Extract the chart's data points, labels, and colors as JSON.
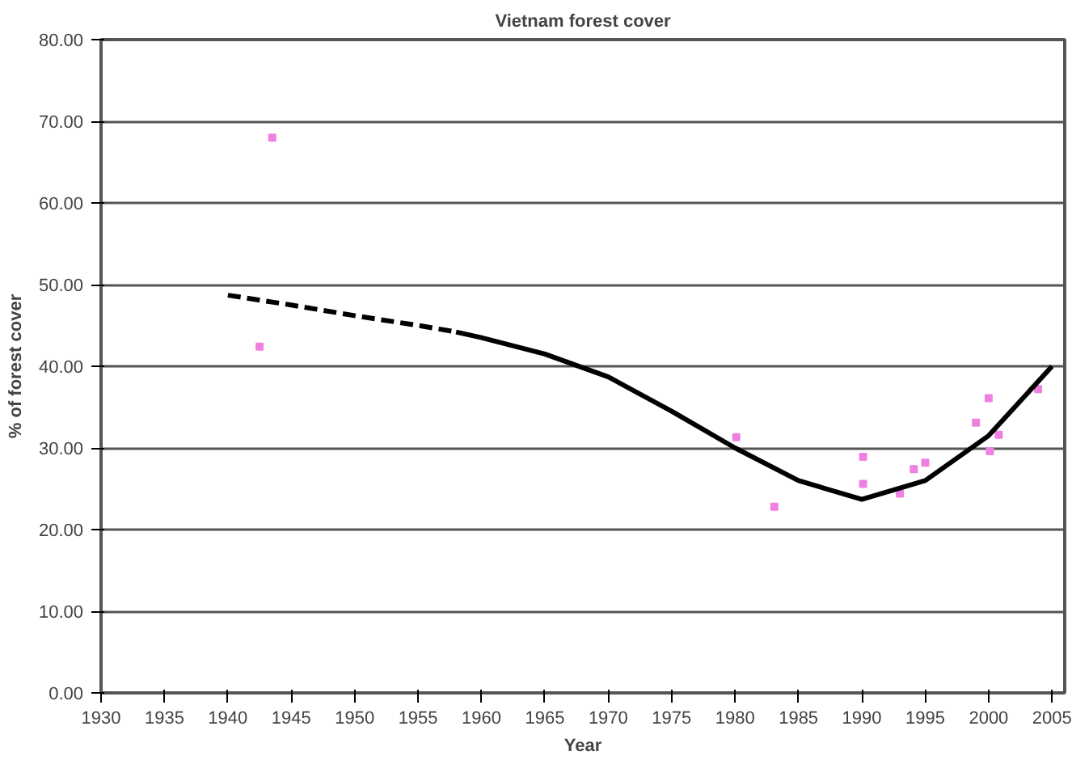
{
  "chart_data": {
    "type": "line",
    "title": "Vietnam forest cover",
    "xlabel": "Year",
    "ylabel": "% of forest cover",
    "xlim": [
      1930,
      2006
    ],
    "xticks": [
      1930,
      1935,
      1940,
      1945,
      1950,
      1955,
      1960,
      1965,
      1970,
      1975,
      1980,
      1985,
      1990,
      1995,
      2000,
      2005
    ],
    "ylim": [
      0,
      80
    ],
    "yticks": [
      {
        "value": 0,
        "label": "0.00"
      },
      {
        "value": 10,
        "label": "10.00"
      },
      {
        "value": 20,
        "label": "20.00"
      },
      {
        "value": 30,
        "label": "30.00"
      },
      {
        "value": 40,
        "label": "40.00"
      },
      {
        "value": 50,
        "label": "50.00"
      },
      {
        "value": 60,
        "label": "60.00"
      },
      {
        "value": 70,
        "label": "70.00"
      },
      {
        "value": 80,
        "label": "80.00"
      }
    ],
    "grid": "y",
    "series": [
      {
        "type": "scatter",
        "marker": "square",
        "color": "#f080e0",
        "x": [
          1942.5,
          1943.5,
          1980.1,
          1983.1,
          1990.1,
          1990.1,
          1993.0,
          1994.1,
          1995.0,
          1999.0,
          2000.0,
          2000.1,
          2000.8,
          2003.9
        ],
        "values": [
          42.4,
          68.0,
          31.3,
          22.8,
          28.9,
          25.6,
          24.4,
          27.4,
          28.2,
          33.1,
          36.1,
          29.6,
          31.6,
          37.2
        ]
      },
      {
        "line_style": "dashed",
        "color": "#000000",
        "x": [
          1940,
          1945,
          1950,
          1955,
          1958
        ],
        "values": [
          48.7,
          47.5,
          46.2,
          45.0,
          44.2
        ]
      },
      {
        "line_style": "solid",
        "color": "#000000",
        "x": [
          1958,
          1960,
          1965,
          1970,
          1975,
          1980,
          1985,
          1990,
          1995,
          2000,
          2005
        ],
        "values": [
          44.2,
          43.5,
          41.5,
          38.7,
          34.5,
          30.0,
          26.0,
          23.7,
          26.0,
          31.5,
          40.0
        ]
      }
    ]
  }
}
